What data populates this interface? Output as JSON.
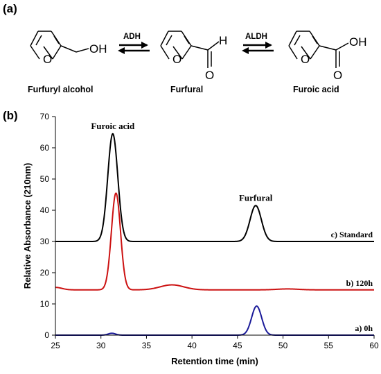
{
  "panel_a": {
    "label": "(a)",
    "compounds": [
      {
        "name": "Furfuryl alcohol",
        "oxygen": "O",
        "group": "OH"
      },
      {
        "name": "Furfural",
        "oxygen": "O",
        "group": "H"
      },
      {
        "name": "Furoic acid",
        "oxygen": "O",
        "group": "OH"
      }
    ],
    "enzymes": [
      "ADH",
      "ALDH"
    ]
  },
  "panel_b": {
    "label": "(b)"
  },
  "chart_data": {
    "type": "line",
    "title": "",
    "xlabel": "Retention time (min)",
    "ylabel": "Relative Absorbance (210nm)",
    "xlim": [
      25,
      60
    ],
    "ylim": [
      0,
      70
    ],
    "xticks": [
      25,
      30,
      35,
      40,
      45,
      50,
      55,
      60
    ],
    "yticks": [
      0,
      10,
      20,
      30,
      40,
      50,
      60,
      70
    ],
    "grid": false,
    "peak_annotations": [
      {
        "text": "Furoic acid",
        "x": 31.3,
        "y": 66
      },
      {
        "text": "Furfural",
        "x": 47.0,
        "y": 43
      }
    ],
    "series": [
      {
        "name": "c) Standard",
        "color": "#000000",
        "baseline": 30,
        "peaks": [
          {
            "center": 31.3,
            "height": 34.5,
            "width": 0.55
          },
          {
            "center": 47.0,
            "height": 11.5,
            "width": 0.62
          }
        ]
      },
      {
        "name": "b) 120h",
        "color": "#cc1111",
        "baseline": 14.5,
        "start_bump": {
          "height": 0.8,
          "width": 0.7
        },
        "peaks": [
          {
            "center": 31.65,
            "height": 31.0,
            "width": 0.5
          },
          {
            "center": 37.8,
            "height": 1.6,
            "width": 1.3
          },
          {
            "center": 50.5,
            "height": 0.3,
            "width": 1.2
          }
        ]
      },
      {
        "name": "a) 0h",
        "color": "#1a1a99",
        "baseline": 0,
        "peaks": [
          {
            "center": 31.2,
            "height": 0.6,
            "width": 0.4
          },
          {
            "center": 47.1,
            "height": 9.3,
            "width": 0.55
          }
        ]
      }
    ]
  }
}
